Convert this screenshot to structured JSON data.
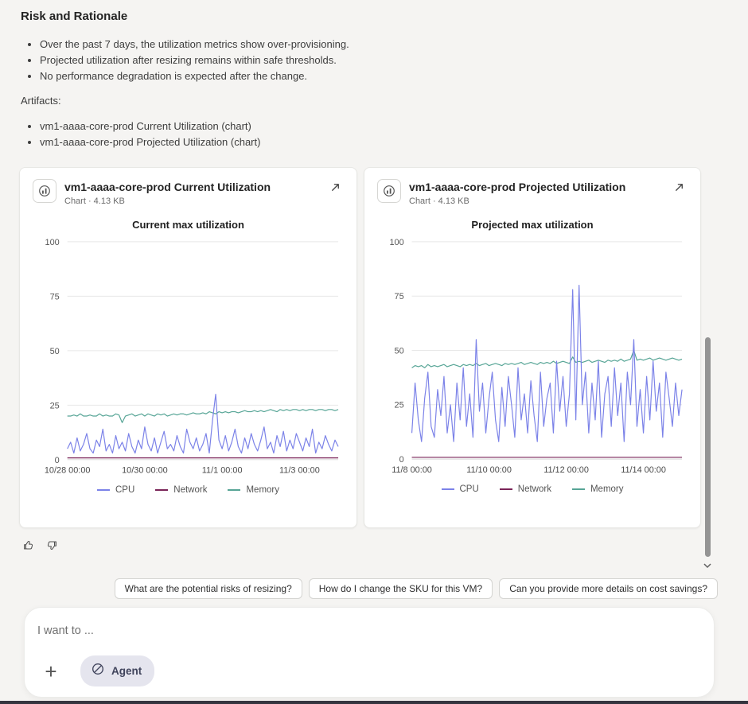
{
  "page": {
    "background": "#f5f4f2"
  },
  "risk_section": {
    "title": "Risk and Rationale",
    "bullets": [
      "Over the past 7 days, the utilization metrics show over-provisioning.",
      "Projected utilization after resizing remains within safe thresholds.",
      "No performance degradation is expected after the change."
    ]
  },
  "artifacts": {
    "label": "Artifacts:",
    "items": [
      "vm1-aaaa-core-prod Current Utilization (chart)",
      "vm1-aaaa-core-prod Projected Utilization (chart)"
    ]
  },
  "cards": [
    {
      "title": "vm1-aaaa-core-prod Current Utilization",
      "meta": "Chart · 4.13 KB"
    },
    {
      "title": "vm1-aaaa-core-prod Projected Utilization",
      "meta": "Chart · 4.13 KB"
    }
  ],
  "chart_data": [
    {
      "type": "line",
      "title": "Current max utilization",
      "xlabel": "",
      "ylabel": "",
      "ylim": [
        0,
        100
      ],
      "y_ticks": [
        0,
        25,
        50,
        75,
        100
      ],
      "grid": true,
      "legend_position": "bottom",
      "x_ticks": [
        {
          "label": "10/28 00:00",
          "f": 0
        },
        {
          "label": "10/30 00:00",
          "f": 0.2857
        },
        {
          "label": "11/1 00:00",
          "f": 0.5714
        },
        {
          "label": "11/3 00:00",
          "f": 0.8571
        }
      ],
      "series": [
        {
          "name": "CPU",
          "color": "#7b82e8",
          "values": [
            5,
            8,
            3,
            10,
            4,
            7,
            12,
            5,
            3,
            9,
            6,
            14,
            4,
            7,
            3,
            11,
            5,
            8,
            4,
            12,
            6,
            3,
            9,
            5,
            15,
            7,
            4,
            10,
            3,
            8,
            13,
            5,
            7,
            4,
            11,
            6,
            3,
            14,
            8,
            5,
            10,
            4,
            7,
            12,
            3,
            18,
            30,
            9,
            5,
            11,
            4,
            8,
            14,
            6,
            3,
            10,
            5,
            12,
            7,
            4,
            9,
            15,
            5,
            8,
            3,
            11,
            6,
            13,
            4,
            9,
            5,
            12,
            8,
            4,
            10,
            6,
            14,
            3,
            8,
            5,
            11,
            7,
            4,
            9,
            6
          ]
        },
        {
          "name": "Network",
          "color": "#7a2458",
          "values": [
            0.8,
            0.8
          ]
        },
        {
          "name": "Memory",
          "color": "#57a596",
          "values": [
            20,
            20,
            20.5,
            20,
            21,
            20,
            20,
            20.5,
            20,
            20,
            21,
            20,
            20.5,
            20,
            20,
            21,
            20.5,
            17,
            20,
            20.5,
            21,
            20,
            20.5,
            21,
            20,
            21,
            20.5,
            20,
            21,
            20.5,
            21,
            20,
            20.5,
            21,
            20.5,
            21,
            21,
            20.5,
            21,
            21.5,
            21,
            21,
            21.5,
            21,
            22,
            21.5,
            21,
            22,
            21.5,
            22,
            21.5,
            22,
            22,
            21.5,
            22,
            22.5,
            22,
            22,
            22.5,
            22,
            22.5,
            22,
            22.5,
            23,
            22.5,
            22,
            23,
            22.5,
            23,
            22.5,
            23,
            23,
            22.5,
            23,
            22.5,
            23,
            23,
            22.5,
            23,
            23,
            22.5,
            23,
            23,
            22.5,
            23
          ]
        }
      ]
    },
    {
      "type": "line",
      "title": "Projected max utilization",
      "xlabel": "",
      "ylabel": "",
      "ylim": [
        0,
        100
      ],
      "y_ticks": [
        0,
        25,
        50,
        75,
        100
      ],
      "grid": true,
      "legend_position": "bottom",
      "x_ticks": [
        {
          "label": "11/8 00:00",
          "f": 0
        },
        {
          "label": "11/10 00:00",
          "f": 0.2857
        },
        {
          "label": "11/12 00:00",
          "f": 0.5714
        },
        {
          "label": "11/14 00:00",
          "f": 0.8571
        }
      ],
      "series": [
        {
          "name": "CPU",
          "color": "#7b82e8",
          "values": [
            12,
            35,
            18,
            8,
            28,
            40,
            15,
            10,
            32,
            20,
            38,
            12,
            25,
            8,
            35,
            18,
            42,
            15,
            30,
            10,
            55,
            22,
            35,
            12,
            28,
            40,
            18,
            8,
            33,
            15,
            38,
            25,
            10,
            42,
            18,
            30,
            12,
            36,
            20,
            8,
            40,
            15,
            28,
            35,
            12,
            45,
            22,
            38,
            15,
            30,
            78,
            18,
            80,
            25,
            40,
            12,
            35,
            18,
            45,
            10,
            30,
            38,
            15,
            42,
            20,
            35,
            8,
            40,
            25,
            55,
            15,
            32,
            12,
            38,
            18,
            45,
            22,
            35,
            10,
            40,
            28,
            15,
            35,
            20,
            32
          ]
        },
        {
          "name": "Network",
          "color": "#7a2458",
          "values": [
            0.8,
            0.8
          ]
        },
        {
          "name": "Memory",
          "color": "#57a596",
          "values": [
            42,
            43,
            42.5,
            43,
            42,
            43.5,
            42.5,
            43,
            42.5,
            43,
            43.5,
            42.5,
            43,
            43.5,
            43,
            42.5,
            43.5,
            43,
            43.5,
            43,
            44,
            43,
            43.5,
            44,
            43,
            43.5,
            44,
            43.5,
            43,
            44,
            43.5,
            44,
            43.5,
            44,
            44.5,
            43.5,
            44,
            44.5,
            44,
            43.5,
            44.5,
            44,
            44.5,
            44,
            45,
            44,
            44.5,
            45,
            44.5,
            44,
            47,
            44.5,
            45,
            44.5,
            45,
            45.5,
            44.5,
            45,
            45.5,
            45,
            44.5,
            45.5,
            45,
            45.5,
            45,
            46,
            45,
            45.5,
            46,
            50,
            45.5,
            46,
            45.5,
            46,
            46.5,
            45.5,
            46,
            46.5,
            46,
            45.5,
            46,
            46.5,
            46,
            45.5,
            46
          ]
        }
      ]
    }
  ],
  "suggestions": [
    "What are the potential risks of resizing?",
    "How do I change the SKU for this VM?",
    "Can you provide more details on cost savings?"
  ],
  "composer": {
    "placeholder": "I want to ...",
    "agent_label": "Agent"
  },
  "icons": {
    "plus": "+",
    "expand": "diagonal-arrow",
    "chart_file": "mini-chart",
    "thumbs_up": "thumb-up-outline",
    "thumbs_down": "thumb-down-outline",
    "agent": "slashed-circle",
    "scroll_down": "chevron-down"
  },
  "colors": {
    "cpu": "#7b82e8",
    "network": "#7a2458",
    "memory": "#57a596",
    "agent_pill_bg": "#e5e5ee",
    "background": "#f5f4f2"
  }
}
